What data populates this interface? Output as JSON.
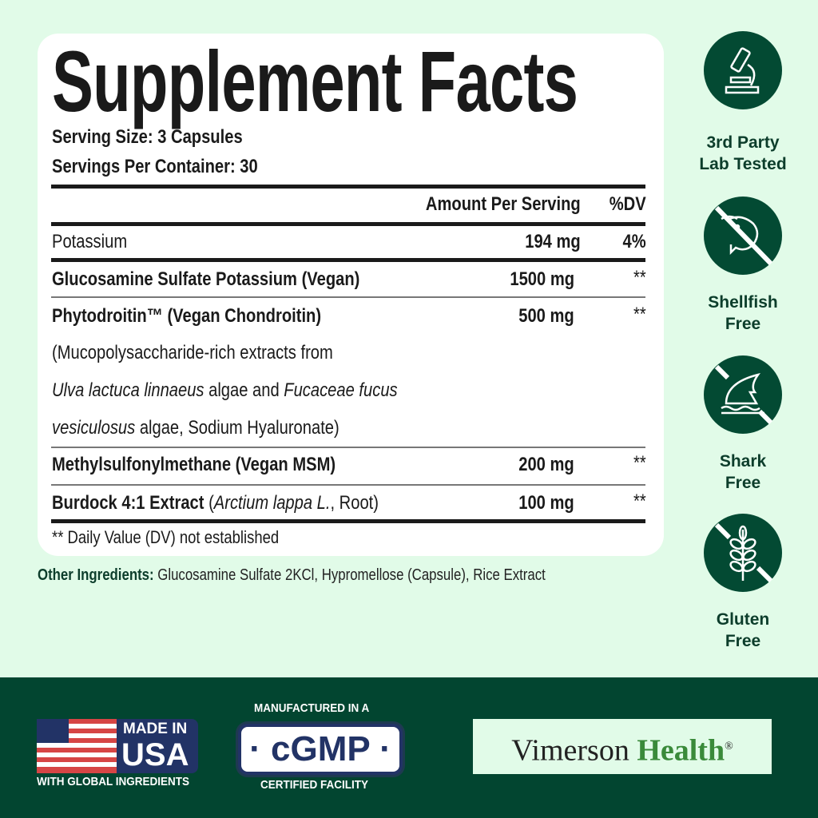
{
  "facts": {
    "title": "Supplement Facts",
    "serving_size": "Serving Size: 3 Capsules",
    "servings_per_container": "Servings Per Container: 30",
    "header_amount": "Amount Per Serving",
    "header_dv": "%DV",
    "rows": [
      {
        "name": "Potassium",
        "amount": "194 mg",
        "dv": "4%"
      },
      {
        "name": "Glucosamine Sulfate Potassium (Vegan)",
        "amount": "1500 mg",
        "dv": "**"
      },
      {
        "name": "Phytodroitin™ (Vegan Chondroitin)",
        "amount": "500 mg",
        "dv": "**"
      },
      {
        "name": "Methylsulfonylmethane (Vegan MSM)",
        "amount": "200 mg",
        "dv": "**"
      },
      {
        "name": "Burdock 4:1 Extract",
        "name_note_open": " (",
        "name_note_italic": "Arctium lappa L.",
        "name_note_close": ", Root)",
        "amount": "100 mg",
        "dv": "**"
      }
    ],
    "description": [
      {
        "a": "(Mucopolysaccharide-rich extracts from"
      },
      {
        "i1": "Ulva lactuca linnaeus",
        "a": " algae and ",
        "i2": "Fucaceae fucus"
      },
      {
        "i1": "vesiculosus",
        "a": " algae, Sodium Hyaluronate)"
      }
    ],
    "footnote": "** Daily Value (DV) not established"
  },
  "other_ingredients": {
    "label": "Other Ingredients:",
    "value": " Glucosamine Sulfate 2KCl, Hypromellose (Capsule), Rice Extract"
  },
  "badges": [
    {
      "icon": "microscope-icon",
      "line1": "3rd Party",
      "line2": "Lab Tested"
    },
    {
      "icon": "no-shellfish-icon",
      "line1": "Shellfish",
      "line2": "Free"
    },
    {
      "icon": "no-shark-icon",
      "line1": "Shark",
      "line2": "Free"
    },
    {
      "icon": "no-gluten-icon",
      "line1": "Gluten",
      "line2": "Free"
    }
  ],
  "footer": {
    "usa_line1": "MADE IN",
    "usa_line2": "USA",
    "usa_sub": "WITH GLOBAL INGREDIENTS",
    "cgmp_top": "MANUFACTURED IN A",
    "cgmp": "cGMP",
    "cgmp_bottom": "CERTIFIED FACILITY",
    "brand_part1": "Vimerson",
    "brand_part2": "Health",
    "brand_mark": "®"
  },
  "colors": {
    "background": "#e1fbe8",
    "dark_green": "#024530",
    "brand_green": "#3a8a3a",
    "flag_red": "#d64545",
    "flag_blue": "#223366"
  }
}
